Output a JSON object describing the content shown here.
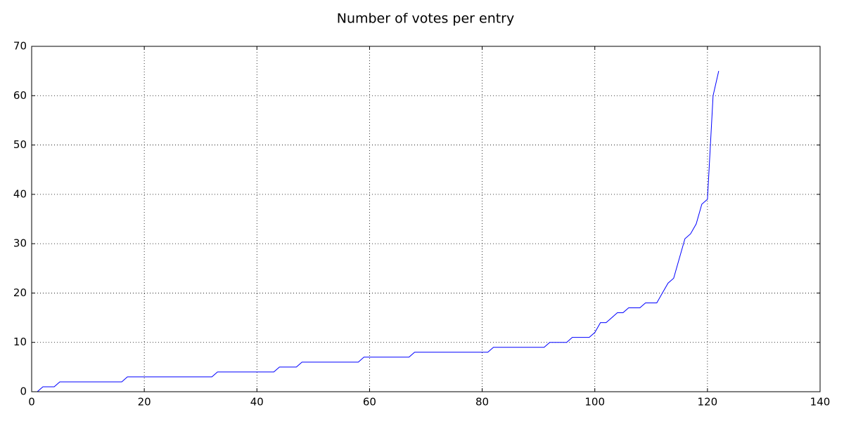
{
  "chart_data": {
    "type": "line",
    "title": "Number of votes per entry",
    "x": [
      0,
      1,
      2,
      3,
      4,
      5,
      6,
      7,
      8,
      9,
      10,
      11,
      12,
      13,
      14,
      15,
      16,
      17,
      18,
      19,
      20,
      21,
      22,
      23,
      24,
      25,
      26,
      27,
      28,
      29,
      30,
      31,
      32,
      33,
      34,
      35,
      36,
      37,
      38,
      39,
      40,
      41,
      42,
      43,
      44,
      45,
      46,
      47,
      48,
      49,
      50,
      51,
      52,
      53,
      54,
      55,
      56,
      57,
      58,
      59,
      60,
      61,
      62,
      63,
      64,
      65,
      66,
      67,
      68,
      69,
      70,
      71,
      72,
      73,
      74,
      75,
      76,
      77,
      78,
      79,
      80,
      81,
      82,
      83,
      84,
      85,
      86,
      87,
      88,
      89,
      90,
      91,
      92,
      93,
      94,
      95,
      96,
      97,
      98,
      99,
      100,
      101,
      102,
      103,
      104,
      105,
      106,
      107,
      108,
      109,
      110,
      111,
      112,
      113,
      114,
      115,
      116,
      117,
      118,
      119,
      120,
      121,
      122
    ],
    "values": [
      0,
      0,
      1,
      1,
      1,
      2,
      2,
      2,
      2,
      2,
      2,
      2,
      2,
      2,
      2,
      2,
      2,
      3,
      3,
      3,
      3,
      3,
      3,
      3,
      3,
      3,
      3,
      3,
      3,
      3,
      3,
      3,
      3,
      4,
      4,
      4,
      4,
      4,
      4,
      4,
      4,
      4,
      4,
      4,
      5,
      5,
      5,
      5,
      6,
      6,
      6,
      6,
      6,
      6,
      6,
      6,
      6,
      6,
      6,
      7,
      7,
      7,
      7,
      7,
      7,
      7,
      7,
      7,
      8,
      8,
      8,
      8,
      8,
      8,
      8,
      8,
      8,
      8,
      8,
      8,
      8,
      8,
      9,
      9,
      9,
      9,
      9,
      9,
      9,
      9,
      9,
      9,
      10,
      10,
      10,
      10,
      11,
      11,
      11,
      11,
      12,
      14,
      14,
      15,
      16,
      16,
      17,
      17,
      17,
      18,
      18,
      18,
      20,
      22,
      23,
      27,
      31,
      32,
      34,
      38,
      39,
      60,
      65
    ],
    "color": "#0000ff",
    "xlim": [
      0,
      140
    ],
    "xticks": [
      0,
      20,
      40,
      60,
      80,
      100,
      120,
      140
    ],
    "ylim": [
      0,
      70
    ],
    "yticks": [
      0,
      10,
      20,
      30,
      40,
      50,
      60,
      70
    ],
    "grid": true
  }
}
